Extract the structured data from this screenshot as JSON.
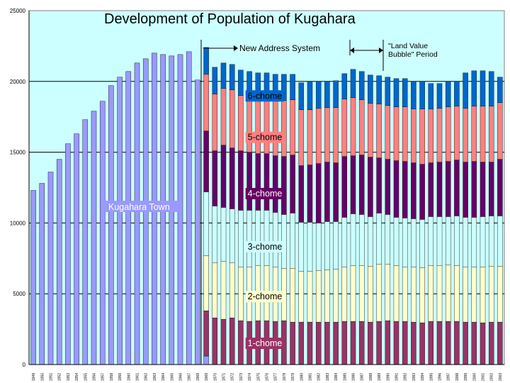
{
  "chart_data": {
    "type": "bar",
    "stacked": true,
    "title": "Development of Population of Kugahara",
    "ylim": [
      0,
      25000
    ],
    "yticks": [
      "0",
      "5000",
      "10000",
      "15000",
      "20000",
      "25000"
    ],
    "grid": true,
    "colors": {
      "plot_bg": "#ccffff",
      "kugahara_town": "#9999ff",
      "1-chome": "#993366",
      "2-chome": "#ffffcc",
      "3-chome": "#ccffff",
      "4-chome": "#660066",
      "5-chome": "#ff8080",
      "6-chome": "#0066cc"
    },
    "annotations": {
      "new_address": "New Address System",
      "bubble_line1": "\"Land Value",
      "bubble_line2": "Bubble\" Period"
    },
    "town_label": "Kugahara Town",
    "chome_labels": [
      "6-chome",
      "5-chome",
      "4-chome",
      "3-chome",
      "2-chome",
      "1-chome"
    ],
    "categories": [
      "1949",
      "1950",
      "1951",
      "1952",
      "1953",
      "1954",
      "1955",
      "1956",
      "1957",
      "1958",
      "1959",
      "1960",
      "1961",
      "1962",
      "1963",
      "1964",
      "1965",
      "1966",
      "1967",
      "1968",
      "1969",
      "1970",
      "1971",
      "1972",
      "1973",
      "1974",
      "1975",
      "1976",
      "1977",
      "1978",
      "1979",
      "1980",
      "1981",
      "1982",
      "1983",
      "1984",
      "1985",
      "1986",
      "1987",
      "1988",
      "1989",
      "1990",
      "1991",
      "1992",
      "1993",
      "1994",
      "1995",
      "1996",
      "1997",
      "1998",
      "1999",
      "2000",
      "2001",
      "2002",
      "2003"
    ],
    "town_values": [
      12300,
      12800,
      13600,
      14500,
      15600,
      16300,
      17300,
      17900,
      18600,
      19700,
      20300,
      20700,
      21300,
      21600,
      22000,
      21900,
      21800,
      21900,
      22100,
      20100,
      600,
      0,
      0,
      0,
      0,
      0,
      0,
      0,
      0,
      0,
      0,
      0,
      0,
      0,
      0,
      0,
      0,
      0,
      0,
      0,
      0,
      0,
      0,
      0,
      0,
      0,
      0,
      0,
      0,
      0,
      0,
      0,
      0,
      0,
      0
    ],
    "series": [
      {
        "name": "1-chome",
        "values": [
          0,
          0,
          0,
          0,
          0,
          0,
          0,
          0,
          0,
          0,
          0,
          0,
          0,
          0,
          0,
          0,
          0,
          0,
          0,
          0,
          3200,
          3300,
          3200,
          3300,
          3100,
          3050,
          3100,
          3100,
          3050,
          3100,
          3000,
          3000,
          3000,
          3000,
          3000,
          3000,
          3050,
          3050,
          3050,
          3000,
          3050,
          3100,
          3050,
          3050,
          3000,
          2950,
          3050,
          3050,
          3050,
          3050,
          3000,
          3000,
          2950,
          3000,
          3000
        ]
      },
      {
        "name": "2-chome",
        "values": [
          0,
          0,
          0,
          0,
          0,
          0,
          0,
          0,
          0,
          0,
          0,
          0,
          0,
          0,
          0,
          0,
          0,
          0,
          0,
          0,
          3900,
          3900,
          4100,
          3900,
          3800,
          3850,
          3900,
          3900,
          3850,
          3700,
          3800,
          3600,
          3600,
          3650,
          3700,
          3750,
          3850,
          3950,
          3950,
          3950,
          4050,
          4000,
          3950,
          3850,
          3900,
          3900,
          3950,
          3950,
          4000,
          3950,
          3900,
          3900,
          3950,
          3950,
          3950
        ]
      },
      {
        "name": "3-chome",
        "values": [
          0,
          0,
          0,
          0,
          0,
          0,
          0,
          0,
          0,
          0,
          0,
          0,
          0,
          0,
          0,
          0,
          0,
          0,
          0,
          0,
          4500,
          4000,
          3800,
          3800,
          4000,
          4000,
          3900,
          3900,
          3850,
          3800,
          3900,
          3450,
          3450,
          3350,
          3400,
          3350,
          3500,
          3650,
          3600,
          3500,
          3600,
          3500,
          3400,
          3450,
          3400,
          3400,
          3450,
          3450,
          3400,
          3500,
          3500,
          3500,
          3550,
          3550,
          3550
        ]
      },
      {
        "name": "4-chome",
        "values": [
          0,
          0,
          0,
          0,
          0,
          0,
          0,
          0,
          0,
          0,
          0,
          0,
          0,
          0,
          0,
          0,
          0,
          0,
          0,
          0,
          4300,
          3900,
          4400,
          4300,
          4200,
          4100,
          4000,
          4000,
          4000,
          4100,
          4100,
          4000,
          4050,
          4200,
          4200,
          4150,
          4300,
          4100,
          4200,
          4200,
          3900,
          3900,
          4000,
          4000,
          3950,
          3900,
          3800,
          3850,
          3900,
          3950,
          3900,
          3950,
          3850,
          3800,
          4000
        ]
      },
      {
        "name": "5-chome",
        "values": [
          0,
          0,
          0,
          0,
          0,
          0,
          0,
          0,
          0,
          0,
          0,
          0,
          0,
          0,
          0,
          0,
          0,
          0,
          0,
          0,
          4000,
          4000,
          4000,
          4100,
          3900,
          3900,
          3950,
          3900,
          3950,
          3950,
          3900,
          3950,
          3900,
          3900,
          3850,
          3900,
          4050,
          4100,
          3900,
          3800,
          3800,
          3800,
          3800,
          3850,
          3800,
          3900,
          3800,
          3800,
          3850,
          3800,
          3800,
          3900,
          3950,
          3950,
          4000
        ]
      },
      {
        "name": "6-chome",
        "values": [
          0,
          0,
          0,
          0,
          0,
          0,
          0,
          0,
          0,
          0,
          0,
          0,
          0,
          0,
          0,
          0,
          0,
          0,
          0,
          0,
          1900,
          1900,
          1800,
          1800,
          1800,
          1800,
          1750,
          1800,
          1800,
          1850,
          1800,
          1900,
          1950,
          1900,
          1850,
          1900,
          1800,
          2000,
          2000,
          2000,
          2000,
          2000,
          2000,
          2000,
          1950,
          1950,
          1800,
          1750,
          1800,
          1750,
          2500,
          2500,
          2500,
          2450,
          1800
        ]
      }
    ]
  }
}
